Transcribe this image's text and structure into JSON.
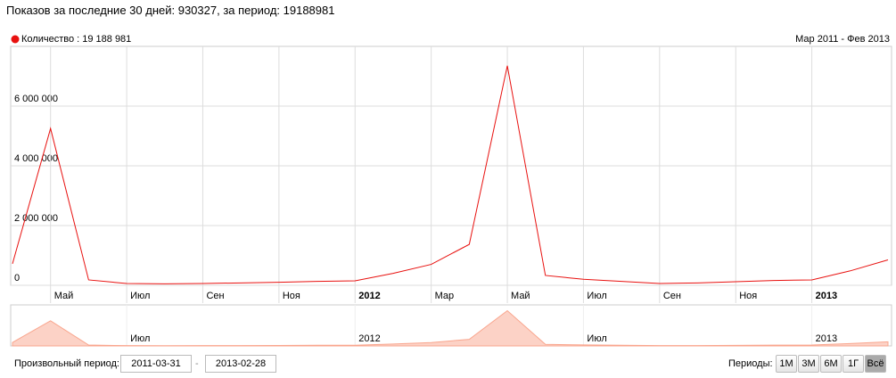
{
  "header": {
    "title": "Показов за последние 30 дней: 930327, за период: 19188981"
  },
  "chart_data": {
    "type": "line",
    "legend": "Количество : 19 188 981",
    "range_label": "Мар 2011 - Фев 2013",
    "series": [
      {
        "name": "Количество",
        "color": "#e8110f",
        "values": [
          720000,
          5250000,
          180000,
          60000,
          50000,
          60000,
          80000,
          100000,
          130000,
          150000,
          400000,
          700000,
          1370000,
          7350000,
          330000,
          200000,
          130000,
          60000,
          80000,
          120000,
          160000,
          180000,
          480000,
          850000
        ]
      }
    ],
    "xlim": [
      0,
      23
    ],
    "xticks": [
      {
        "value": 1,
        "label": "Май"
      },
      {
        "value": 3,
        "label": "Июл"
      },
      {
        "value": 5,
        "label": "Сен"
      },
      {
        "value": 7,
        "label": "Ноя"
      },
      {
        "value": 9,
        "label": "2012"
      },
      {
        "value": 11,
        "label": "Мар"
      },
      {
        "value": 13,
        "label": "Май"
      },
      {
        "value": 15,
        "label": "Июл"
      },
      {
        "value": 17,
        "label": "Сен"
      },
      {
        "value": 19,
        "label": "Ноя"
      },
      {
        "value": 21,
        "label": "2013"
      }
    ],
    "ylim": [
      0,
      8000000
    ],
    "yticks": [
      0,
      {
        "value": 2000000,
        "label": "2 000 000"
      },
      {
        "value": 4000000,
        "label": "4 000 000"
      },
      {
        "value": 6000000,
        "label": "6 000 000"
      }
    ],
    "grid": true,
    "navigator": {
      "color": "#f9a58d",
      "ticks": [
        {
          "value": 3,
          "label": "Июл"
        },
        {
          "value": 9,
          "label": "2012"
        },
        {
          "value": 15,
          "label": "Июл"
        },
        {
          "value": 21,
          "label": "2013"
        }
      ]
    }
  },
  "controls": {
    "custom_period_label": "Произвольный период:",
    "date_from": "2011-03-31",
    "separator": "-",
    "date_to": "2013-02-28",
    "periods_label": "Периоды:",
    "periods": [
      "1М",
      "3М",
      "6М",
      "1Г",
      "Всё"
    ],
    "active_period": 4
  }
}
